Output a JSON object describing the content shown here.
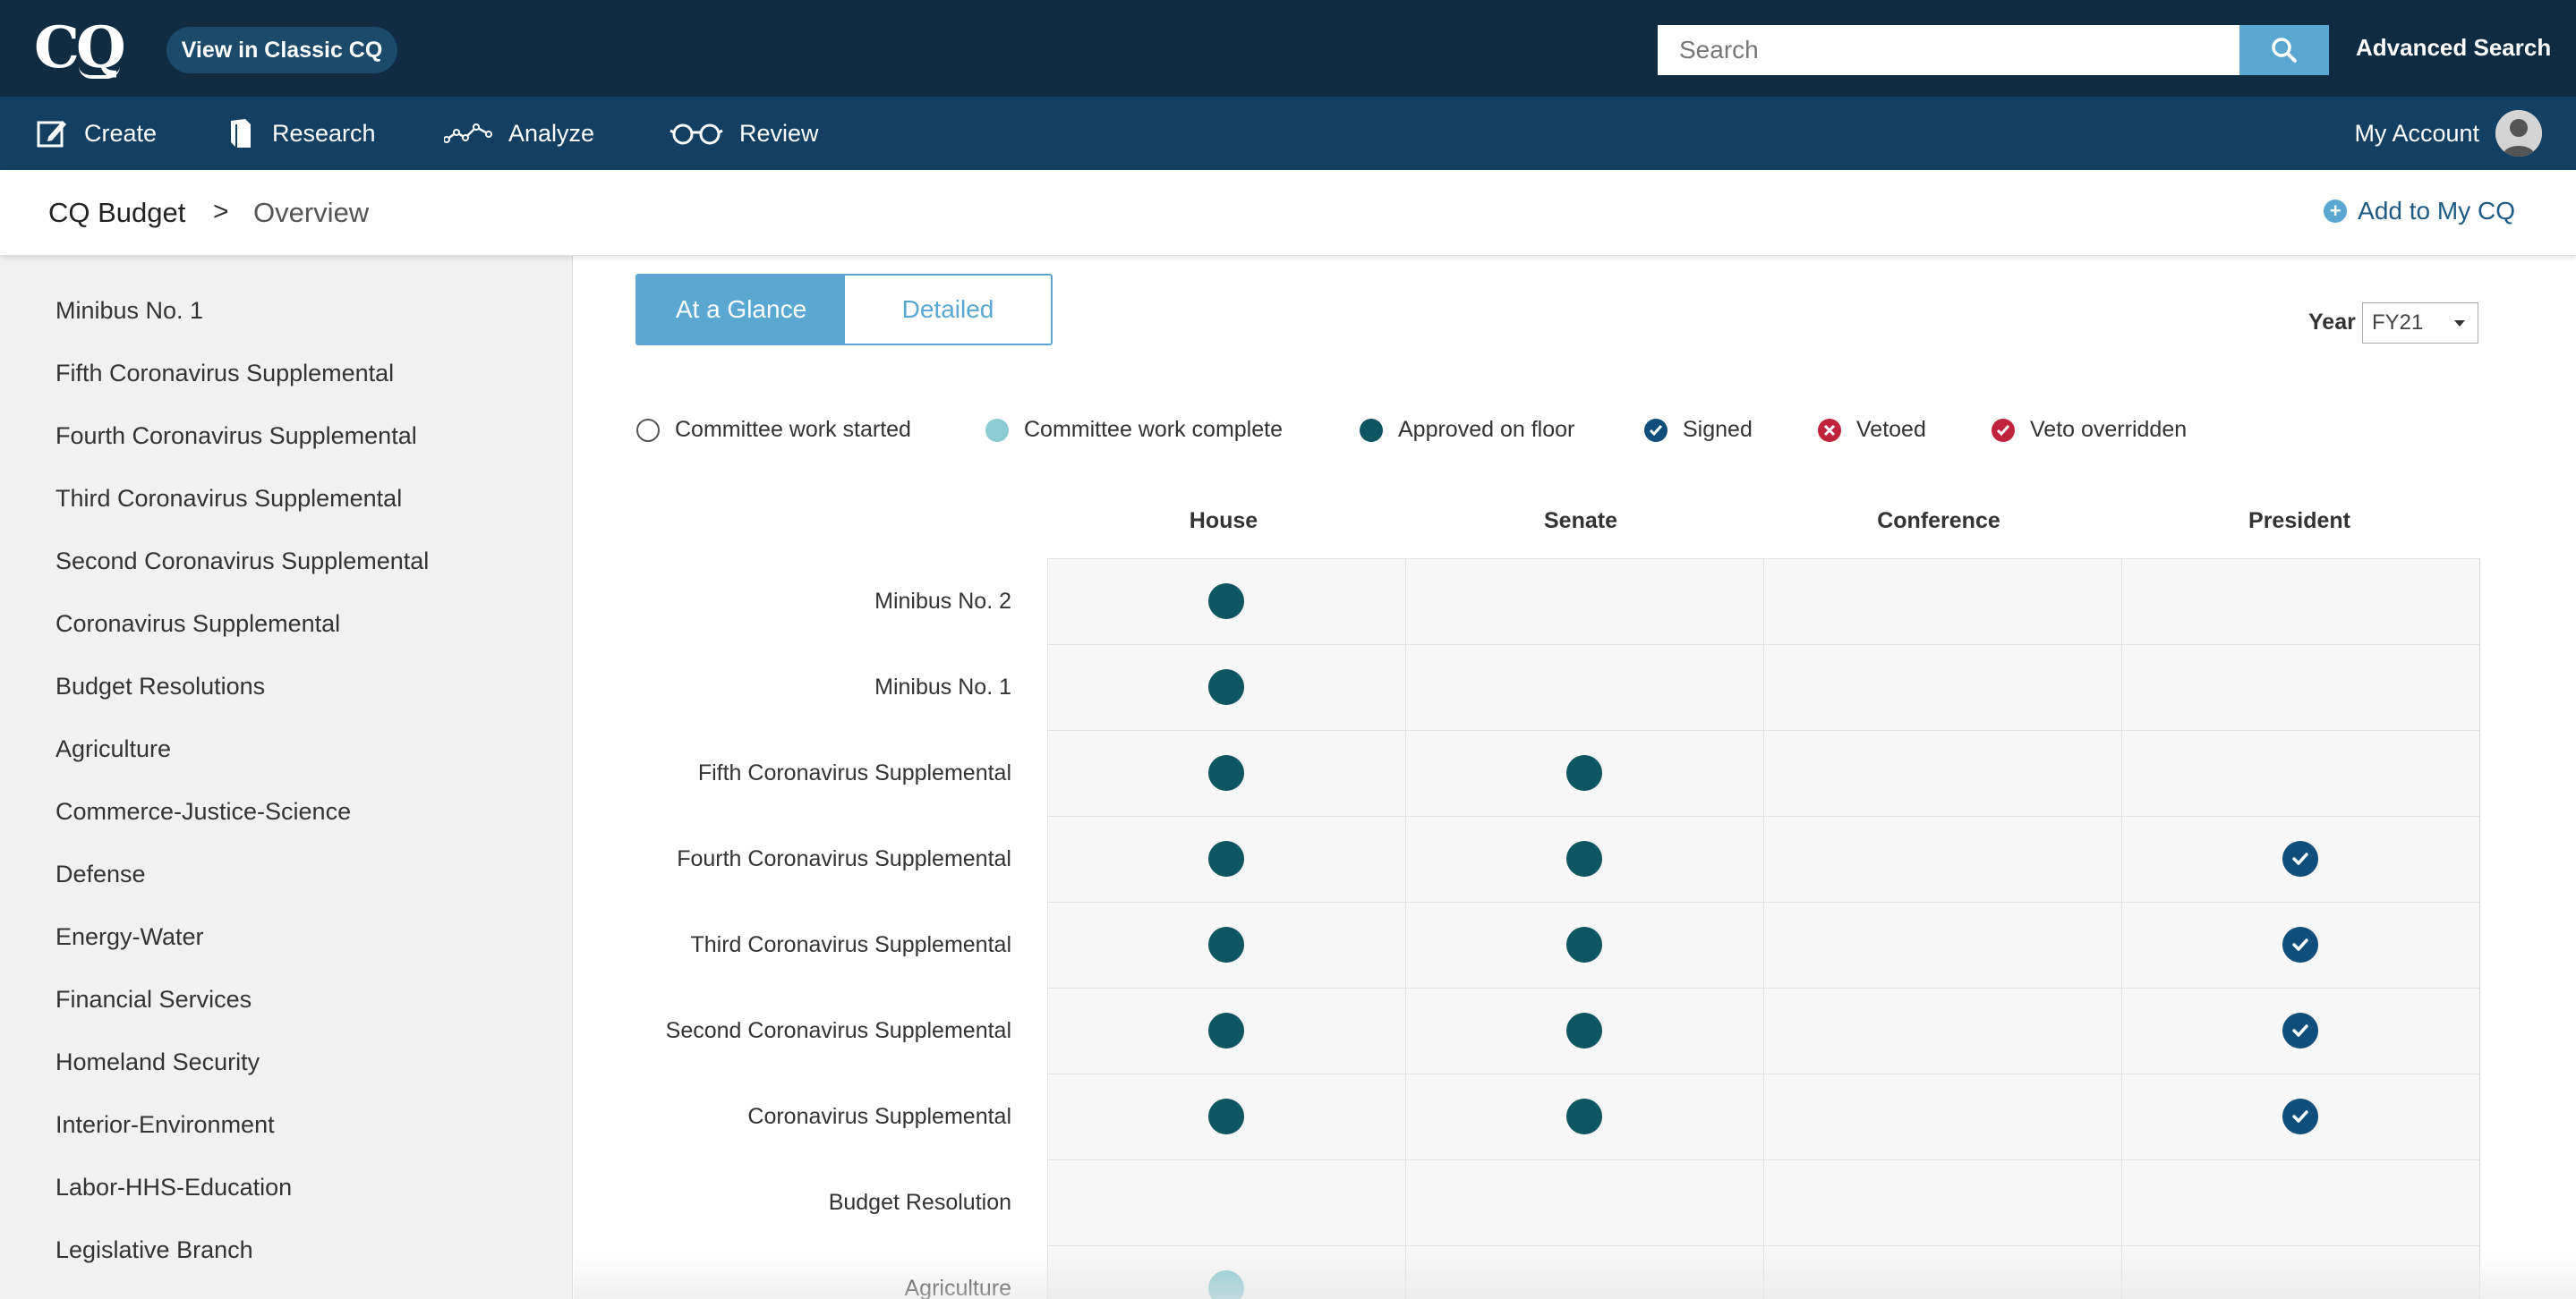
{
  "header": {
    "logo": "CQ",
    "classic_button": "View in Classic CQ",
    "search_placeholder": "Search",
    "advanced_search": "Advanced Search"
  },
  "nav": {
    "items": [
      {
        "label": "Create",
        "icon": "edit-icon"
      },
      {
        "label": "Research",
        "icon": "book-icon"
      },
      {
        "label": "Analyze",
        "icon": "trend-icon"
      },
      {
        "label": "Review",
        "icon": "glasses-icon"
      }
    ],
    "account": "My Account"
  },
  "breadcrumb": {
    "root": "CQ Budget",
    "separator": ">",
    "current": "Overview",
    "add_button": "Add to My CQ"
  },
  "sidebar": {
    "items": [
      "Minibus No. 1",
      "Fifth Coronavirus Supplemental",
      "Fourth Coronavirus Supplemental",
      "Third Coronavirus Supplemental",
      "Second Coronavirus Supplemental",
      "Coronavirus Supplemental",
      "Budget Resolutions",
      "Agriculture",
      "Commerce-Justice-Science",
      "Defense",
      "Energy-Water",
      "Financial Services",
      "Homeland Security",
      "Interior-Environment",
      "Labor-HHS-Education",
      "Legislative Branch"
    ]
  },
  "view_toggle": {
    "active": "At a Glance",
    "inactive": "Detailed"
  },
  "year": {
    "label": "Year",
    "value": "FY21"
  },
  "legend": [
    {
      "label": "Committee work started",
      "status": "started"
    },
    {
      "label": "Committee work complete",
      "status": "complete"
    },
    {
      "label": "Approved on floor",
      "status": "floor"
    },
    {
      "label": "Signed",
      "status": "signed"
    },
    {
      "label": "Vetoed",
      "status": "vetoed"
    },
    {
      "label": "Veto overridden",
      "status": "overridden"
    }
  ],
  "columns": [
    "House",
    "Senate",
    "Conference",
    "President"
  ],
  "rows": [
    {
      "label": "Minibus No. 2",
      "status": [
        "floor",
        "",
        "",
        ""
      ]
    },
    {
      "label": "Minibus No. 1",
      "status": [
        "floor",
        "",
        "",
        ""
      ]
    },
    {
      "label": "Fifth Coronavirus Supplemental",
      "status": [
        "floor",
        "floor",
        "",
        ""
      ]
    },
    {
      "label": "Fourth Coronavirus Supplemental",
      "status": [
        "floor",
        "floor",
        "",
        "signed"
      ]
    },
    {
      "label": "Third Coronavirus Supplemental",
      "status": [
        "floor",
        "floor",
        "",
        "signed"
      ]
    },
    {
      "label": "Second Coronavirus Supplemental",
      "status": [
        "floor",
        "floor",
        "",
        "signed"
      ]
    },
    {
      "label": "Coronavirus Supplemental",
      "status": [
        "floor",
        "floor",
        "",
        "signed"
      ]
    },
    {
      "label": "Budget Resolution",
      "status": [
        "",
        "",
        "",
        ""
      ]
    },
    {
      "label": "Agriculture",
      "status": [
        "complete",
        "",
        "",
        ""
      ]
    }
  ],
  "colors": {
    "topbar": "#0f2c42",
    "navbar": "#123f62",
    "accent": "#5aa8d2",
    "floor": "#0d5560",
    "complete": "#8ccbd3",
    "signed": "#0f4e7a",
    "vetoed": "#c0243c"
  }
}
